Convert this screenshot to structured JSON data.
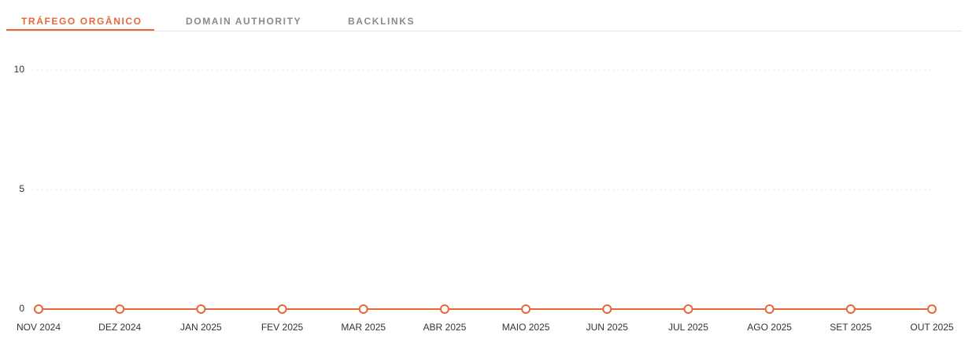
{
  "tabs": [
    "TRÁFEGO ORGÂNICO",
    "DOMAIN AUTHORITY",
    "BACKLINKS"
  ],
  "chart_data": {
    "type": "line",
    "categories": [
      "NOV 2024",
      "DEZ 2024",
      "JAN 2025",
      "FEV 2025",
      "MAR 2025",
      "ABR 2025",
      "MAIO 2025",
      "JUN 2025",
      "JUL 2025",
      "AGO 2025",
      "SET 2025",
      "OUT 2025"
    ],
    "values": [
      0,
      0,
      0,
      0,
      0,
      0,
      0,
      0,
      0,
      0,
      0,
      0
    ],
    "color": "#e8673a",
    "ylim": [
      0,
      10
    ],
    "yticks": [
      0,
      5,
      10
    ],
    "grid": true
  }
}
